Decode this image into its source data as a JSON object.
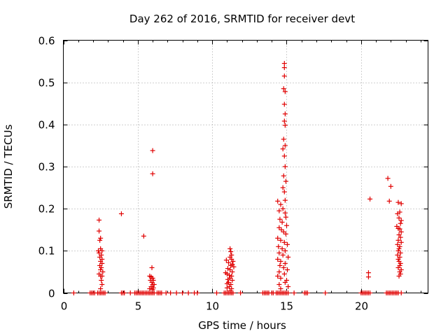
{
  "chart_data": {
    "type": "scatter",
    "title": "Day 262 of 2016, SRMTID for receiver devt",
    "xlabel": "GPS time / hours",
    "ylabel": "SRMTID / TECUs",
    "xlim": [
      0,
      24.5
    ],
    "ylim": [
      0,
      0.6
    ],
    "xticks": [
      0,
      5,
      10,
      15,
      20
    ],
    "xtick_labels": [
      "0",
      "5",
      "10",
      "15",
      "20"
    ],
    "yticks": [
      0,
      0.1,
      0.2,
      0.3,
      0.4,
      0.5,
      0.6
    ],
    "ytick_labels": [
      "0",
      "0.1",
      "0.2",
      "0.3",
      "0.4",
      "0.5",
      "0.6"
    ],
    "grid": true,
    "marker": "+",
    "series": [
      {
        "name": "devt",
        "color": "#e00000",
        "points": [
          [
            0.7,
            0
          ],
          [
            1.8,
            0
          ],
          [
            1.9,
            0
          ],
          [
            2.0,
            0
          ],
          [
            2.1,
            0
          ],
          [
            2.3,
            0
          ],
          [
            2.4,
            0
          ],
          [
            2.5,
            0
          ],
          [
            2.6,
            0
          ],
          [
            2.7,
            0
          ],
          [
            2.8,
            0
          ],
          [
            3.9,
            0
          ],
          [
            4.0,
            0
          ],
          [
            4.1,
            0
          ],
          [
            4.5,
            0
          ],
          [
            4.8,
            0
          ],
          [
            4.9,
            0
          ],
          [
            5.0,
            0
          ],
          [
            5.1,
            0
          ],
          [
            5.2,
            0
          ],
          [
            5.3,
            0
          ],
          [
            5.4,
            0
          ],
          [
            5.5,
            0
          ],
          [
            5.6,
            0
          ],
          [
            5.7,
            0
          ],
          [
            5.8,
            0
          ],
          [
            5.9,
            0
          ],
          [
            6.0,
            0
          ],
          [
            6.1,
            0
          ],
          [
            6.3,
            0
          ],
          [
            6.4,
            0
          ],
          [
            6.5,
            0
          ],
          [
            6.6,
            0
          ],
          [
            6.9,
            0
          ],
          [
            7.2,
            0
          ],
          [
            7.6,
            0
          ],
          [
            8.0,
            0
          ],
          [
            8.4,
            0
          ],
          [
            8.8,
            0
          ],
          [
            9.0,
            0
          ],
          [
            10.3,
            0
          ],
          [
            10.8,
            0
          ],
          [
            10.9,
            0
          ],
          [
            11.0,
            0
          ],
          [
            11.1,
            0
          ],
          [
            11.2,
            0
          ],
          [
            11.3,
            0
          ],
          [
            11.4,
            0
          ],
          [
            11.9,
            0
          ],
          [
            13.4,
            0
          ],
          [
            13.5,
            0
          ],
          [
            13.6,
            0
          ],
          [
            13.7,
            0
          ],
          [
            13.8,
            0
          ],
          [
            14.0,
            0
          ],
          [
            14.1,
            0
          ],
          [
            14.3,
            0
          ],
          [
            14.4,
            0
          ],
          [
            14.5,
            0
          ],
          [
            14.6,
            0
          ],
          [
            14.7,
            0
          ],
          [
            14.8,
            0
          ],
          [
            14.9,
            0
          ],
          [
            15.0,
            0
          ],
          [
            15.1,
            0
          ],
          [
            15.5,
            0
          ],
          [
            16.2,
            0
          ],
          [
            16.3,
            0
          ],
          [
            16.4,
            0
          ],
          [
            17.6,
            0
          ],
          [
            20.0,
            0
          ],
          [
            20.1,
            0
          ],
          [
            20.2,
            0
          ],
          [
            20.3,
            0
          ],
          [
            20.4,
            0
          ],
          [
            20.5,
            0
          ],
          [
            20.6,
            0
          ],
          [
            21.7,
            0
          ],
          [
            21.8,
            0
          ],
          [
            21.9,
            0
          ],
          [
            22.0,
            0
          ],
          [
            22.1,
            0
          ],
          [
            22.2,
            0
          ],
          [
            22.3,
            0
          ],
          [
            22.4,
            0
          ],
          [
            22.5,
            0
          ],
          [
            22.7,
            0
          ],
          [
            2.4,
            0.173
          ],
          [
            2.4,
            0.147
          ],
          [
            2.45,
            0.125
          ],
          [
            2.5,
            0.13
          ],
          [
            2.35,
            0.1
          ],
          [
            2.4,
            0.095
          ],
          [
            2.5,
            0.105
          ],
          [
            2.6,
            0.1
          ],
          [
            2.55,
            0.09
          ],
          [
            2.45,
            0.085
          ],
          [
            2.6,
            0.08
          ],
          [
            2.5,
            0.075
          ],
          [
            2.6,
            0.07
          ],
          [
            2.45,
            0.065
          ],
          [
            2.55,
            0.06
          ],
          [
            2.5,
            0.055
          ],
          [
            2.65,
            0.05
          ],
          [
            2.4,
            0.045
          ],
          [
            2.5,
            0.04
          ],
          [
            2.6,
            0.04
          ],
          [
            2.55,
            0.03
          ],
          [
            2.6,
            0.02
          ],
          [
            2.5,
            0.01
          ],
          [
            3.9,
            0.188
          ],
          [
            5.4,
            0.135
          ],
          [
            6.0,
            0.338
          ],
          [
            6.0,
            0.283
          ],
          [
            5.95,
            0.06
          ],
          [
            5.8,
            0.04
          ],
          [
            5.9,
            0.038
          ],
          [
            6.0,
            0.035
          ],
          [
            6.05,
            0.03
          ],
          [
            5.85,
            0.03
          ],
          [
            5.95,
            0.025
          ],
          [
            6.0,
            0.02
          ],
          [
            6.1,
            0.02
          ],
          [
            5.9,
            0.015
          ],
          [
            6.05,
            0.012
          ],
          [
            5.8,
            0.01
          ],
          [
            6.0,
            0.008
          ],
          [
            11.2,
            0.105
          ],
          [
            11.25,
            0.098
          ],
          [
            11.3,
            0.09
          ],
          [
            11.2,
            0.085
          ],
          [
            11.3,
            0.08
          ],
          [
            10.95,
            0.078
          ],
          [
            11.4,
            0.075
          ],
          [
            11.1,
            0.072
          ],
          [
            11.35,
            0.068
          ],
          [
            11.25,
            0.065
          ],
          [
            11.45,
            0.062
          ],
          [
            11.05,
            0.058
          ],
          [
            11.2,
            0.055
          ],
          [
            11.35,
            0.05
          ],
          [
            10.9,
            0.048
          ],
          [
            11.0,
            0.045
          ],
          [
            11.15,
            0.042
          ],
          [
            11.3,
            0.04
          ],
          [
            11.2,
            0.035
          ],
          [
            11.05,
            0.032
          ],
          [
            11.35,
            0.03
          ],
          [
            11.1,
            0.025
          ],
          [
            11.0,
            0.022
          ],
          [
            11.25,
            0.02
          ],
          [
            11.15,
            0.015
          ],
          [
            11.0,
            0.012
          ],
          [
            11.3,
            0.01
          ],
          [
            11.2,
            0.005
          ],
          [
            14.85,
            0.545
          ],
          [
            14.85,
            0.535
          ],
          [
            14.85,
            0.515
          ],
          [
            14.8,
            0.485
          ],
          [
            14.9,
            0.478
          ],
          [
            14.85,
            0.448
          ],
          [
            14.9,
            0.425
          ],
          [
            14.85,
            0.408
          ],
          [
            14.9,
            0.398
          ],
          [
            14.8,
            0.365
          ],
          [
            14.9,
            0.35
          ],
          [
            14.75,
            0.342
          ],
          [
            14.85,
            0.325
          ],
          [
            14.9,
            0.3
          ],
          [
            14.8,
            0.278
          ],
          [
            14.95,
            0.265
          ],
          [
            14.75,
            0.25
          ],
          [
            14.85,
            0.24
          ],
          [
            14.9,
            0.22
          ],
          [
            14.4,
            0.218
          ],
          [
            14.6,
            0.21
          ],
          [
            14.75,
            0.2
          ],
          [
            14.5,
            0.195
          ],
          [
            14.9,
            0.19
          ],
          [
            14.95,
            0.18
          ],
          [
            14.55,
            0.175
          ],
          [
            14.7,
            0.168
          ],
          [
            15.0,
            0.16
          ],
          [
            14.5,
            0.155
          ],
          [
            14.65,
            0.15
          ],
          [
            14.8,
            0.145
          ],
          [
            14.95,
            0.14
          ],
          [
            14.4,
            0.13
          ],
          [
            14.6,
            0.125
          ],
          [
            14.85,
            0.12
          ],
          [
            15.05,
            0.115
          ],
          [
            14.45,
            0.11
          ],
          [
            14.7,
            0.105
          ],
          [
            14.9,
            0.1
          ],
          [
            14.5,
            0.095
          ],
          [
            14.75,
            0.09
          ],
          [
            15.1,
            0.085
          ],
          [
            14.4,
            0.08
          ],
          [
            14.6,
            0.075
          ],
          [
            14.9,
            0.07
          ],
          [
            14.55,
            0.065
          ],
          [
            14.8,
            0.06
          ],
          [
            15.05,
            0.055
          ],
          [
            14.5,
            0.05
          ],
          [
            14.85,
            0.045
          ],
          [
            14.4,
            0.04
          ],
          [
            14.6,
            0.035
          ],
          [
            15.0,
            0.03
          ],
          [
            14.9,
            0.025
          ],
          [
            14.5,
            0.02
          ],
          [
            15.1,
            0.015
          ],
          [
            14.6,
            0.01
          ],
          [
            20.6,
            0.223
          ],
          [
            20.5,
            0.048
          ],
          [
            20.5,
            0.038
          ],
          [
            21.8,
            0.272
          ],
          [
            22.0,
            0.253
          ],
          [
            21.9,
            0.218
          ],
          [
            22.5,
            0.215
          ],
          [
            22.7,
            0.212
          ],
          [
            22.6,
            0.192
          ],
          [
            22.45,
            0.188
          ],
          [
            22.55,
            0.178
          ],
          [
            22.7,
            0.172
          ],
          [
            22.65,
            0.165
          ],
          [
            22.4,
            0.158
          ],
          [
            22.5,
            0.153
          ],
          [
            22.6,
            0.152
          ],
          [
            22.7,
            0.145
          ],
          [
            22.55,
            0.138
          ],
          [
            22.65,
            0.132
          ],
          [
            22.5,
            0.125
          ],
          [
            22.7,
            0.12
          ],
          [
            22.45,
            0.115
          ],
          [
            22.6,
            0.11
          ],
          [
            22.55,
            0.105
          ],
          [
            22.5,
            0.1
          ],
          [
            22.65,
            0.095
          ],
          [
            22.45,
            0.09
          ],
          [
            22.6,
            0.085
          ],
          [
            22.5,
            0.08
          ],
          [
            22.55,
            0.075
          ],
          [
            22.65,
            0.07
          ],
          [
            22.6,
            0.065
          ],
          [
            22.5,
            0.06
          ],
          [
            22.7,
            0.055
          ],
          [
            22.6,
            0.05
          ],
          [
            22.65,
            0.045
          ],
          [
            22.55,
            0.04
          ]
        ]
      }
    ]
  }
}
